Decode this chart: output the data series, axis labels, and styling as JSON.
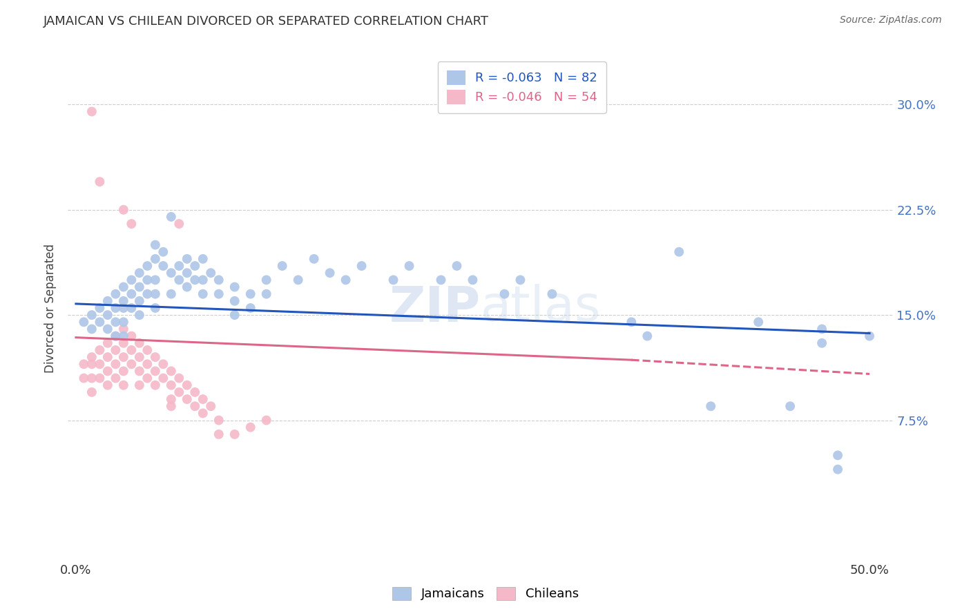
{
  "title": "JAMAICAN VS CHILEAN DIVORCED OR SEPARATED CORRELATION CHART",
  "source": "Source: ZipAtlas.com",
  "ylabel": "Divorced or Separated",
  "ytick_values": [
    0.075,
    0.15,
    0.225,
    0.3
  ],
  "ytick_labels": [
    "7.5%",
    "15.0%",
    "22.5%",
    "30.0%"
  ],
  "xlim": [
    -0.005,
    0.515
  ],
  "ylim": [
    -0.025,
    0.335
  ],
  "jamaican_color": "#aec6e8",
  "chilean_color": "#f5b8c8",
  "jamaican_line_color": "#2255bb",
  "chilean_line_color": "#dd6688",
  "r_jamaican": -0.063,
  "n_jamaican": 82,
  "r_chilean": -0.046,
  "n_chilean": 54,
  "jam_trend_x": [
    0.0,
    0.5
  ],
  "jam_trend_y": [
    0.158,
    0.137
  ],
  "chi_trend_x0": 0.0,
  "chi_trend_x1": 0.35,
  "chi_trend_x_dash0": 0.35,
  "chi_trend_x_dash1": 0.5,
  "chi_trend_y0": 0.134,
  "chi_trend_y1": 0.118,
  "chi_trend_y_dash1": 0.108,
  "jamaican_x": [
    0.005,
    0.01,
    0.01,
    0.015,
    0.015,
    0.02,
    0.02,
    0.02,
    0.025,
    0.025,
    0.025,
    0.025,
    0.03,
    0.03,
    0.03,
    0.03,
    0.03,
    0.035,
    0.035,
    0.035,
    0.04,
    0.04,
    0.04,
    0.04,
    0.045,
    0.045,
    0.045,
    0.05,
    0.05,
    0.05,
    0.05,
    0.05,
    0.055,
    0.055,
    0.06,
    0.06,
    0.06,
    0.065,
    0.065,
    0.07,
    0.07,
    0.07,
    0.075,
    0.075,
    0.08,
    0.08,
    0.08,
    0.085,
    0.09,
    0.09,
    0.1,
    0.1,
    0.1,
    0.11,
    0.11,
    0.12,
    0.12,
    0.13,
    0.14,
    0.15,
    0.16,
    0.17,
    0.18,
    0.2,
    0.21,
    0.23,
    0.24,
    0.25,
    0.27,
    0.28,
    0.3,
    0.35,
    0.36,
    0.38,
    0.4,
    0.43,
    0.45,
    0.47,
    0.47,
    0.48,
    0.48,
    0.5
  ],
  "jamaican_y": [
    0.145,
    0.15,
    0.14,
    0.155,
    0.145,
    0.16,
    0.15,
    0.14,
    0.165,
    0.155,
    0.145,
    0.135,
    0.17,
    0.16,
    0.155,
    0.145,
    0.135,
    0.175,
    0.165,
    0.155,
    0.18,
    0.17,
    0.16,
    0.15,
    0.185,
    0.175,
    0.165,
    0.2,
    0.19,
    0.175,
    0.165,
    0.155,
    0.195,
    0.185,
    0.22,
    0.18,
    0.165,
    0.185,
    0.175,
    0.19,
    0.18,
    0.17,
    0.185,
    0.175,
    0.19,
    0.175,
    0.165,
    0.18,
    0.175,
    0.165,
    0.17,
    0.16,
    0.15,
    0.165,
    0.155,
    0.175,
    0.165,
    0.185,
    0.175,
    0.19,
    0.18,
    0.175,
    0.185,
    0.175,
    0.185,
    0.175,
    0.185,
    0.175,
    0.165,
    0.175,
    0.165,
    0.145,
    0.135,
    0.195,
    0.085,
    0.145,
    0.085,
    0.14,
    0.13,
    0.05,
    0.04,
    0.135
  ],
  "chilean_x": [
    0.005,
    0.005,
    0.01,
    0.01,
    0.01,
    0.01,
    0.015,
    0.015,
    0.015,
    0.02,
    0.02,
    0.02,
    0.02,
    0.025,
    0.025,
    0.025,
    0.025,
    0.03,
    0.03,
    0.03,
    0.03,
    0.03,
    0.035,
    0.035,
    0.035,
    0.04,
    0.04,
    0.04,
    0.04,
    0.045,
    0.045,
    0.045,
    0.05,
    0.05,
    0.05,
    0.055,
    0.055,
    0.06,
    0.06,
    0.06,
    0.065,
    0.065,
    0.07,
    0.07,
    0.075,
    0.075,
    0.08,
    0.08,
    0.085,
    0.09,
    0.09,
    0.1,
    0.11,
    0.12
  ],
  "chilean_y": [
    0.115,
    0.105,
    0.12,
    0.115,
    0.105,
    0.095,
    0.125,
    0.115,
    0.105,
    0.13,
    0.12,
    0.11,
    0.1,
    0.135,
    0.125,
    0.115,
    0.105,
    0.14,
    0.13,
    0.12,
    0.11,
    0.1,
    0.135,
    0.125,
    0.115,
    0.13,
    0.12,
    0.11,
    0.1,
    0.125,
    0.115,
    0.105,
    0.12,
    0.11,
    0.1,
    0.115,
    0.105,
    0.11,
    0.1,
    0.09,
    0.105,
    0.095,
    0.1,
    0.09,
    0.095,
    0.085,
    0.09,
    0.08,
    0.085,
    0.075,
    0.065,
    0.065,
    0.07,
    0.075
  ],
  "chilean_outliers_x": [
    0.01,
    0.015,
    0.03,
    0.035,
    0.065,
    0.06
  ],
  "chilean_outliers_y": [
    0.295,
    0.245,
    0.225,
    0.215,
    0.215,
    0.085
  ]
}
